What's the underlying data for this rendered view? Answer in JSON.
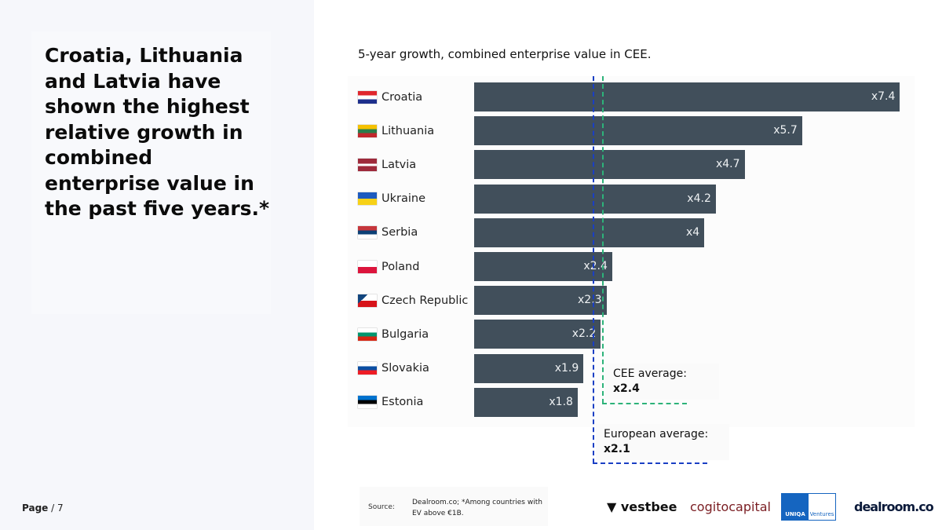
{
  "headline": "Croatia, Lithuania and Latvia have shown the highest relative growth in combined enterprise value in the past five years.*",
  "page": {
    "label": "Page",
    "number": "/ 7"
  },
  "chart_data": {
    "type": "bar",
    "orientation": "horizontal",
    "title": "5-year growth, combined enterprise value in CEE.",
    "categories": [
      "Croatia",
      "Lithuania",
      "Latvia",
      "Ukraine",
      "Serbia",
      "Poland",
      "Czech Republic",
      "Bulgaria",
      "Slovakia",
      "Estonia"
    ],
    "values": [
      7.4,
      5.7,
      4.7,
      4.2,
      4,
      2.4,
      2.3,
      2.2,
      1.9,
      1.8
    ],
    "labels": [
      "x7.4",
      "x5.7",
      "x4.7",
      "x4.2",
      "x4",
      "x2.4",
      "x2.3",
      "x2.2",
      "x1.9",
      "x1.8"
    ],
    "bar_color": "#414f5b",
    "reference_lines": [
      {
        "label": "CEE average:",
        "value_label": "x2.4",
        "value": 2.4,
        "color": "#2db37a",
        "style": "dashed"
      },
      {
        "label": "European average:",
        "value_label": "x2.1",
        "value": 2.1,
        "color": "#1a3fc4",
        "style": "dashed"
      }
    ]
  },
  "flags": [
    "croatia-flag",
    "lithuania-flag",
    "latvia-flag",
    "ukraine-flag",
    "serbia-flag",
    "poland-flag",
    "czech-flag",
    "bulgaria-flag",
    "slovakia-flag",
    "estonia-flag"
  ],
  "footer": {
    "source_label": "Source:",
    "source_text": "Dealroom.co; *Among countries with EV above €1B.",
    "logos": [
      "vestbee",
      "cogitocapital",
      "UNIQA Ventures",
      "dealroom.co"
    ]
  }
}
